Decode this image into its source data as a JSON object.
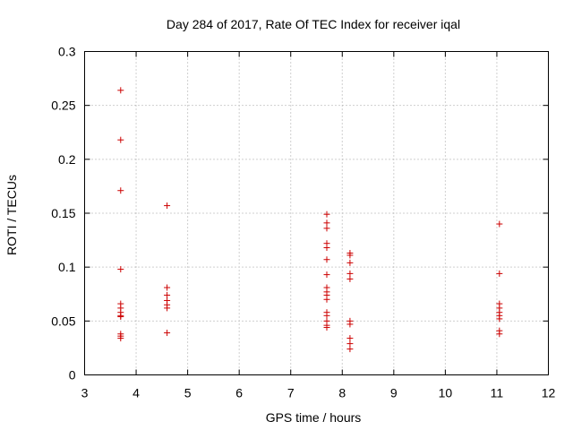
{
  "chart_data": {
    "type": "scatter",
    "title": "Day 284 of 2017, Rate Of TEC Index for receiver iqal",
    "xlabel": "GPS time / hours",
    "ylabel": "ROTI / TECUs",
    "xlim": [
      3,
      12
    ],
    "ylim": [
      0,
      0.3
    ],
    "xticks": [
      3,
      4,
      5,
      6,
      7,
      8,
      9,
      10,
      11,
      12
    ],
    "xtick_labels": [
      "3",
      "4",
      "5",
      "6",
      "7",
      "8",
      "9",
      "10",
      "11",
      "12"
    ],
    "yticks": [
      0,
      0.05,
      0.1,
      0.15,
      0.2,
      0.25,
      0.3
    ],
    "ytick_labels": [
      "0",
      "0.05",
      "0.1",
      "0.15",
      "0.2",
      "0.25",
      "0.3"
    ],
    "grid": true,
    "marker": "+",
    "marker_color": "#cc0000",
    "series": [
      {
        "name": "ROTI",
        "points": [
          [
            3.7,
            0.264
          ],
          [
            3.7,
            0.218
          ],
          [
            3.7,
            0.171
          ],
          [
            3.7,
            0.098
          ],
          [
            3.7,
            0.066
          ],
          [
            3.7,
            0.062
          ],
          [
            3.7,
            0.058
          ],
          [
            3.7,
            0.055
          ],
          [
            3.7,
            0.054
          ],
          [
            3.7,
            0.038
          ],
          [
            3.7,
            0.036
          ],
          [
            3.7,
            0.034
          ],
          [
            4.6,
            0.157
          ],
          [
            4.6,
            0.081
          ],
          [
            4.6,
            0.074
          ],
          [
            4.6,
            0.069
          ],
          [
            4.6,
            0.065
          ],
          [
            4.6,
            0.062
          ],
          [
            4.6,
            0.039
          ],
          [
            7.7,
            0.149
          ],
          [
            7.7,
            0.141
          ],
          [
            7.7,
            0.136
          ],
          [
            7.7,
            0.122
          ],
          [
            7.7,
            0.118
          ],
          [
            7.7,
            0.107
          ],
          [
            7.7,
            0.093
          ],
          [
            7.7,
            0.081
          ],
          [
            7.7,
            0.077
          ],
          [
            7.7,
            0.074
          ],
          [
            7.7,
            0.07
          ],
          [
            7.7,
            0.058
          ],
          [
            7.7,
            0.055
          ],
          [
            7.7,
            0.05
          ],
          [
            7.7,
            0.046
          ],
          [
            7.7,
            0.044
          ],
          [
            8.15,
            0.113
          ],
          [
            8.15,
            0.111
          ],
          [
            8.15,
            0.104
          ],
          [
            8.15,
            0.094
          ],
          [
            8.15,
            0.089
          ],
          [
            8.15,
            0.05
          ],
          [
            8.15,
            0.047
          ],
          [
            8.15,
            0.034
          ],
          [
            8.15,
            0.029
          ],
          [
            8.15,
            0.024
          ],
          [
            11.05,
            0.14
          ],
          [
            11.05,
            0.094
          ],
          [
            11.05,
            0.066
          ],
          [
            11.05,
            0.062
          ],
          [
            11.05,
            0.058
          ],
          [
            11.05,
            0.055
          ],
          [
            11.05,
            0.052
          ],
          [
            11.05,
            0.041
          ],
          [
            11.05,
            0.038
          ]
        ]
      }
    ]
  }
}
